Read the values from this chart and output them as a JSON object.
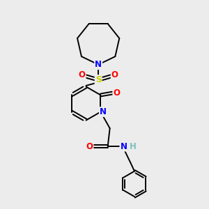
{
  "bg_color": "#ececec",
  "atom_colors": {
    "C": "#000000",
    "N": "#0000ff",
    "O": "#ff0000",
    "S": "#cccc00",
    "H": "#7fbfbf"
  },
  "bond_color": "#000000",
  "bond_width": 1.4,
  "figsize": [
    3.0,
    3.0
  ],
  "dpi": 100
}
